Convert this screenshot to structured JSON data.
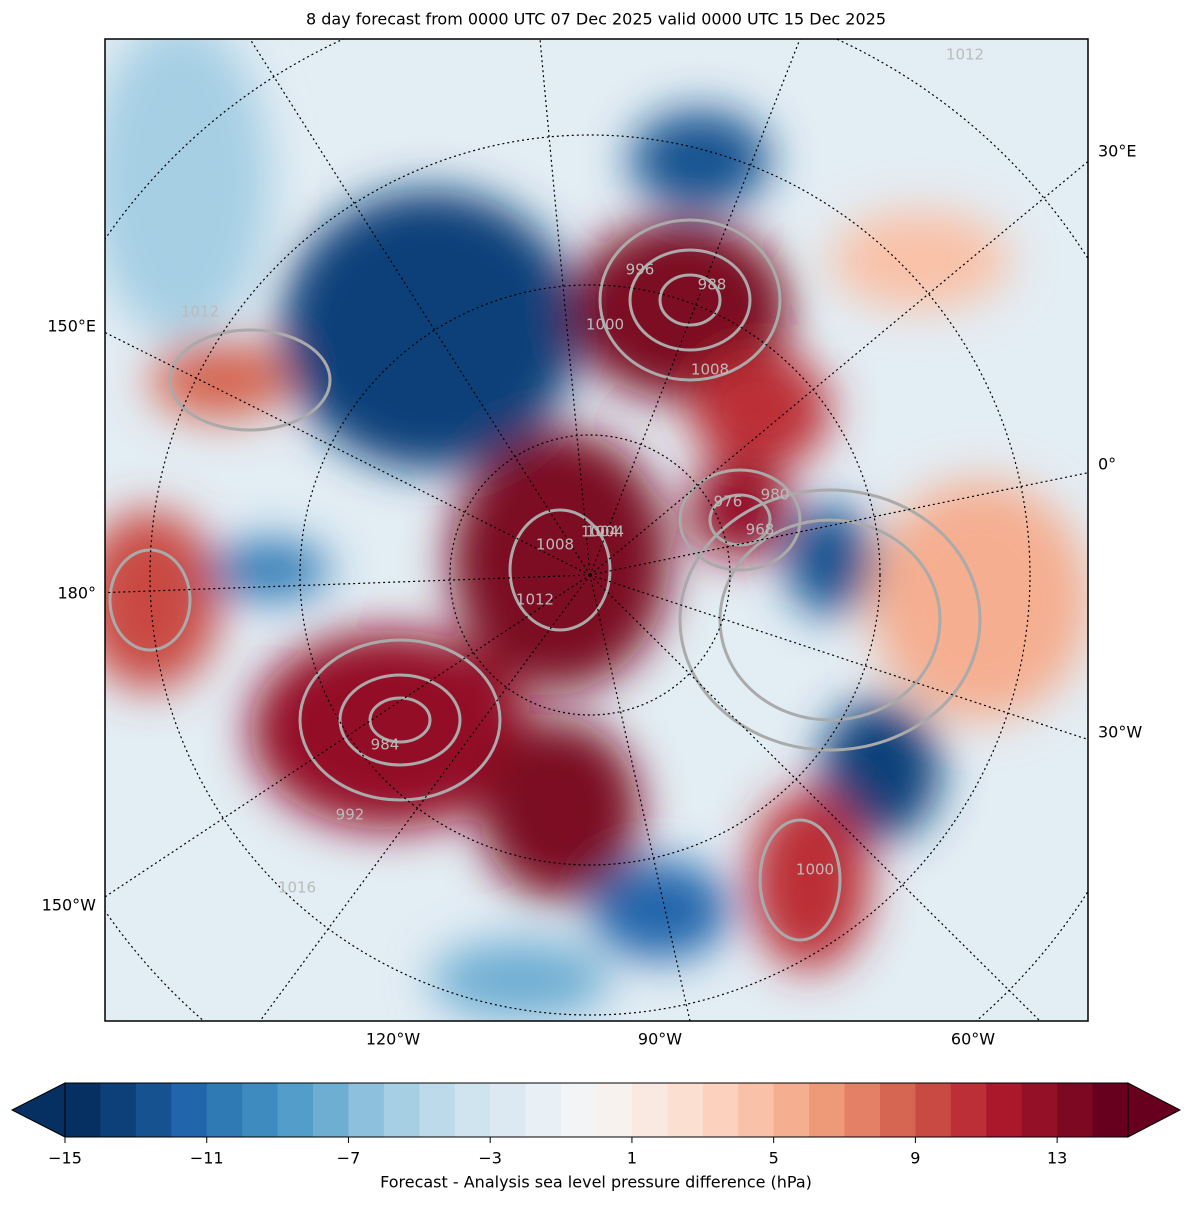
{
  "header": {
    "title": "8 day forecast from 0000 UTC 07 Dec 2025 valid 0000 UTC 15 Dec 2025"
  },
  "map": {
    "lon_labels_right": [
      "30°E",
      "0°",
      "30°W"
    ],
    "lon_labels_left": [
      "150°E",
      "180°",
      "150°W"
    ],
    "lon_labels_bottom": [
      "120°W",
      "90°W",
      "60°W"
    ],
    "contour_labels": [
      "1012",
      "1012",
      "996",
      "988",
      "1000",
      "1008",
      "1004",
      "976",
      "968",
      "980",
      "984",
      "992",
      "1016",
      "1008",
      "1004",
      "1012",
      "1000"
    ]
  },
  "colorbar": {
    "label": "Forecast - Analysis sea level pressure difference (hPa)",
    "lim": [
      -15,
      15
    ],
    "ticks": [
      {
        "value": -15,
        "label": "−15"
      },
      {
        "value": -11,
        "label": "−11"
      },
      {
        "value": -7,
        "label": "−7"
      },
      {
        "value": -3,
        "label": "−3"
      },
      1,
      5,
      9,
      13
    ],
    "colors": [
      "#053061",
      "#0d4079",
      "#175290",
      "#2166ac",
      "#2f79b5",
      "#3d8bbf",
      "#529dc9",
      "#6eaed3",
      "#8cc0dc",
      "#a6cfe4",
      "#bcdaea",
      "#cfe4ef",
      "#dde9f2",
      "#e9f0f5",
      "#f2f4f6",
      "#f8f2ee",
      "#f9e9e1",
      "#fbdfd1",
      "#fcd2bf",
      "#f9c1a7",
      "#f5ae90",
      "#ee9a79",
      "#e38065",
      "#d66651",
      "#c94a42",
      "#bc2f36",
      "#ab172b",
      "#941027",
      "#7c0822",
      "#67001f"
    ]
  }
}
